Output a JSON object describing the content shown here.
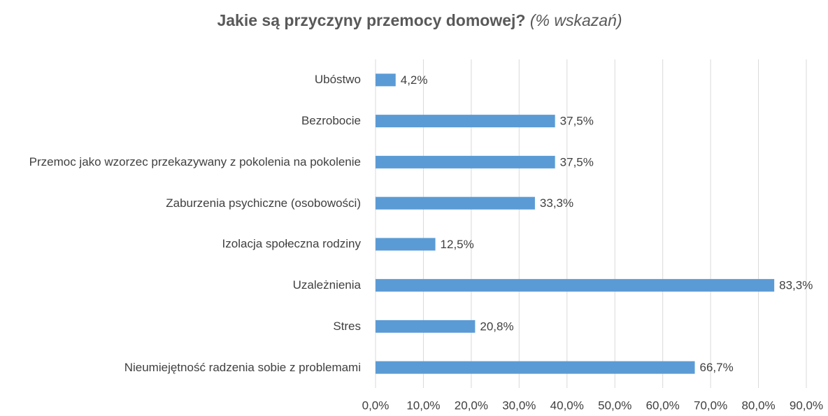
{
  "chart_data": {
    "type": "barh",
    "title": "Jakie są przyczyny przemocy domowej?",
    "subtitle": "(% wskazań)",
    "categories": [
      "Ubóstwo",
      "Bezrobocie",
      "Przemoc jako wzorzec przekazywany z pokolenia na pokolenie",
      "Zaburzenia psychiczne (osobowości)",
      "Izolacja społeczna rodziny",
      "Uzależnienia",
      "Stres",
      "Nieumiejętność radzenia sobie z problemami"
    ],
    "values": [
      4.2,
      37.5,
      37.5,
      33.3,
      12.5,
      83.3,
      20.8,
      66.7
    ],
    "value_labels": [
      "4,2%",
      "37,5%",
      "37,5%",
      "33,3%",
      "12,5%",
      "83,3%",
      "20,8%",
      "66,7%"
    ],
    "color": "#5b9bd5",
    "xlim": [
      0,
      90
    ],
    "xticks": [
      {
        "value": 0,
        "label": "0,0%"
      },
      {
        "value": 10,
        "label": "10,0%"
      },
      {
        "value": 20,
        "label": "20,0%"
      },
      {
        "value": 30,
        "label": "30,0%"
      },
      {
        "value": 40,
        "label": "40,0%"
      },
      {
        "value": 50,
        "label": "50,0%"
      },
      {
        "value": 60,
        "label": "60,0%"
      },
      {
        "value": 70,
        "label": "70,0%"
      },
      {
        "value": 80,
        "label": "80,0%"
      },
      {
        "value": 90,
        "label": "90,0%"
      }
    ],
    "grid": true
  }
}
